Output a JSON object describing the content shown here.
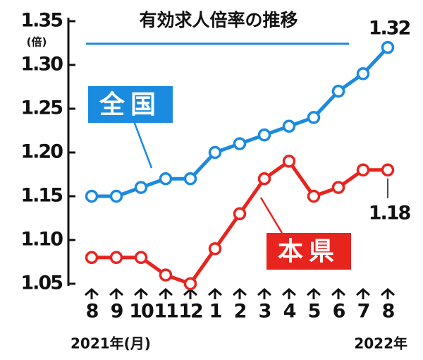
{
  "chart_data": {
    "type": "line",
    "title": "有効求人倍率の推移",
    "y_unit": "(倍)",
    "categories": [
      "8",
      "9",
      "10",
      "11",
      "12",
      "1",
      "2",
      "3",
      "4",
      "5",
      "6",
      "7",
      "8"
    ],
    "x_notes": [
      "2021年(月)",
      "2022年"
    ],
    "series": [
      {
        "name": "全国",
        "color": "#1b8be0",
        "values": [
          1.15,
          1.15,
          1.16,
          1.17,
          1.17,
          1.2,
          1.21,
          1.22,
          1.23,
          1.24,
          1.27,
          1.29,
          1.32
        ],
        "value_labels": [
          null,
          null,
          null,
          null,
          null,
          null,
          null,
          null,
          null,
          null,
          null,
          null,
          "1.32"
        ]
      },
      {
        "name": "本県",
        "color": "#e8241f",
        "values": [
          1.08,
          1.08,
          1.08,
          1.06,
          1.05,
          1.09,
          1.13,
          1.17,
          1.19,
          1.15,
          1.16,
          1.18,
          1.18
        ],
        "value_labels": [
          null,
          null,
          null,
          null,
          null,
          null,
          null,
          null,
          null,
          null,
          null,
          null,
          "1.18"
        ]
      }
    ],
    "ylim": [
      1.05,
      1.35
    ],
    "yticks": [
      1.05,
      {
        "value": 1.1,
        "label": "1.10"
      },
      1.15,
      {
        "value": 1.2,
        "label": "1.20"
      },
      1.25,
      {
        "value": 1.3,
        "label": "1.30"
      },
      1.35
    ],
    "grid": false
  }
}
